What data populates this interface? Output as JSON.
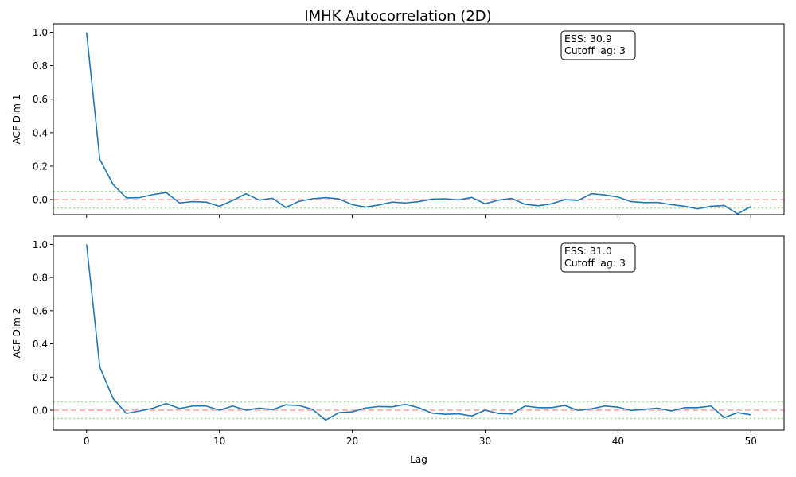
{
  "figure": {
    "title": "IMHK Autocorrelation (2D)"
  },
  "colors": {
    "series": "#1f77b4",
    "zero_line": "#ff9896",
    "conf_band": "#98df8a",
    "frame": "#000000",
    "text": "#000000"
  },
  "chart_data": [
    {
      "type": "line",
      "ylabel": "ACF Dim 1",
      "xlabel": "",
      "xlim": [
        -2.5,
        52.5
      ],
      "ylim": [
        -0.09,
        1.05
      ],
      "xticks": [
        0,
        10,
        20,
        30,
        40,
        50
      ],
      "show_xtick_labels": false,
      "yticks": [
        0.0,
        0.2,
        0.4,
        0.6,
        0.8,
        1.0
      ],
      "ytick_labels": [
        "0.0",
        "0.2",
        "0.4",
        "0.6",
        "0.8",
        "1.0"
      ],
      "reference_lines": {
        "zero": 0.0,
        "conf_upper": 0.05,
        "conf_lower": -0.05
      },
      "annotation": {
        "lines": [
          "ESS: 30.9",
          "Cutoff lag: 3"
        ],
        "placement": "top-right"
      },
      "grid": false,
      "series": [
        {
          "x": [
            0,
            1,
            2,
            3,
            4,
            5,
            6,
            7,
            8,
            9,
            10,
            11,
            12,
            13,
            14,
            15,
            16,
            17,
            18,
            19,
            20,
            21,
            22,
            23,
            24,
            25,
            26,
            27,
            28,
            29,
            30,
            31,
            32,
            33,
            34,
            35,
            36,
            37,
            38,
            39,
            40,
            41,
            42,
            43,
            44,
            45,
            46,
            47,
            48,
            49,
            50
          ],
          "values": [
            1.0,
            0.24,
            0.09,
            0.01,
            0.012,
            0.03,
            0.042,
            -0.02,
            -0.012,
            -0.015,
            -0.04,
            -0.005,
            0.035,
            -0.003,
            0.008,
            -0.047,
            -0.01,
            0.005,
            0.012,
            0.004,
            -0.03,
            -0.045,
            -0.032,
            -0.015,
            -0.02,
            -0.012,
            0.003,
            0.005,
            -0.002,
            0.013,
            -0.025,
            -0.003,
            0.007,
            -0.028,
            -0.037,
            -0.025,
            0.0,
            -0.005,
            0.035,
            0.028,
            0.015,
            -0.012,
            -0.018,
            -0.017,
            -0.03,
            -0.04,
            -0.055,
            -0.04,
            -0.035,
            -0.085,
            -0.042
          ]
        }
      ]
    },
    {
      "type": "line",
      "ylabel": "ACF Dim 2",
      "xlabel": "Lag",
      "xlim": [
        -2.5,
        52.5
      ],
      "ylim": [
        -0.12,
        1.05
      ],
      "xticks": [
        0,
        10,
        20,
        30,
        40,
        50
      ],
      "xtick_labels": [
        "0",
        "10",
        "20",
        "30",
        "40",
        "50"
      ],
      "show_xtick_labels": true,
      "yticks": [
        0.0,
        0.2,
        0.4,
        0.6,
        0.8,
        1.0
      ],
      "ytick_labels": [
        "0.0",
        "0.2",
        "0.4",
        "0.6",
        "0.8",
        "1.0"
      ],
      "reference_lines": {
        "zero": 0.0,
        "conf_upper": 0.05,
        "conf_lower": -0.05
      },
      "annotation": {
        "lines": [
          "ESS: 31.0",
          "Cutoff lag: 3"
        ],
        "placement": "top-right"
      },
      "grid": false,
      "series": [
        {
          "x": [
            0,
            1,
            2,
            3,
            4,
            5,
            6,
            7,
            8,
            9,
            10,
            11,
            12,
            13,
            14,
            15,
            16,
            17,
            18,
            19,
            20,
            21,
            22,
            23,
            24,
            25,
            26,
            27,
            28,
            29,
            30,
            31,
            32,
            33,
            34,
            35,
            36,
            37,
            38,
            39,
            40,
            41,
            42,
            43,
            44,
            45,
            46,
            47,
            48,
            49,
            50
          ],
          "values": [
            1.0,
            0.26,
            0.07,
            -0.02,
            -0.005,
            0.012,
            0.04,
            0.01,
            0.025,
            0.025,
            0.0,
            0.025,
            0.0,
            0.012,
            0.003,
            0.032,
            0.028,
            0.005,
            -0.06,
            -0.015,
            -0.01,
            0.013,
            0.022,
            0.02,
            0.035,
            0.015,
            -0.018,
            -0.025,
            -0.022,
            -0.035,
            0.0,
            -0.02,
            -0.023,
            0.025,
            0.015,
            0.015,
            0.028,
            -0.002,
            0.008,
            0.025,
            0.018,
            -0.002,
            0.005,
            0.012,
            -0.005,
            0.015,
            0.015,
            0.025,
            -0.045,
            -0.015,
            -0.028
          ]
        }
      ]
    }
  ]
}
